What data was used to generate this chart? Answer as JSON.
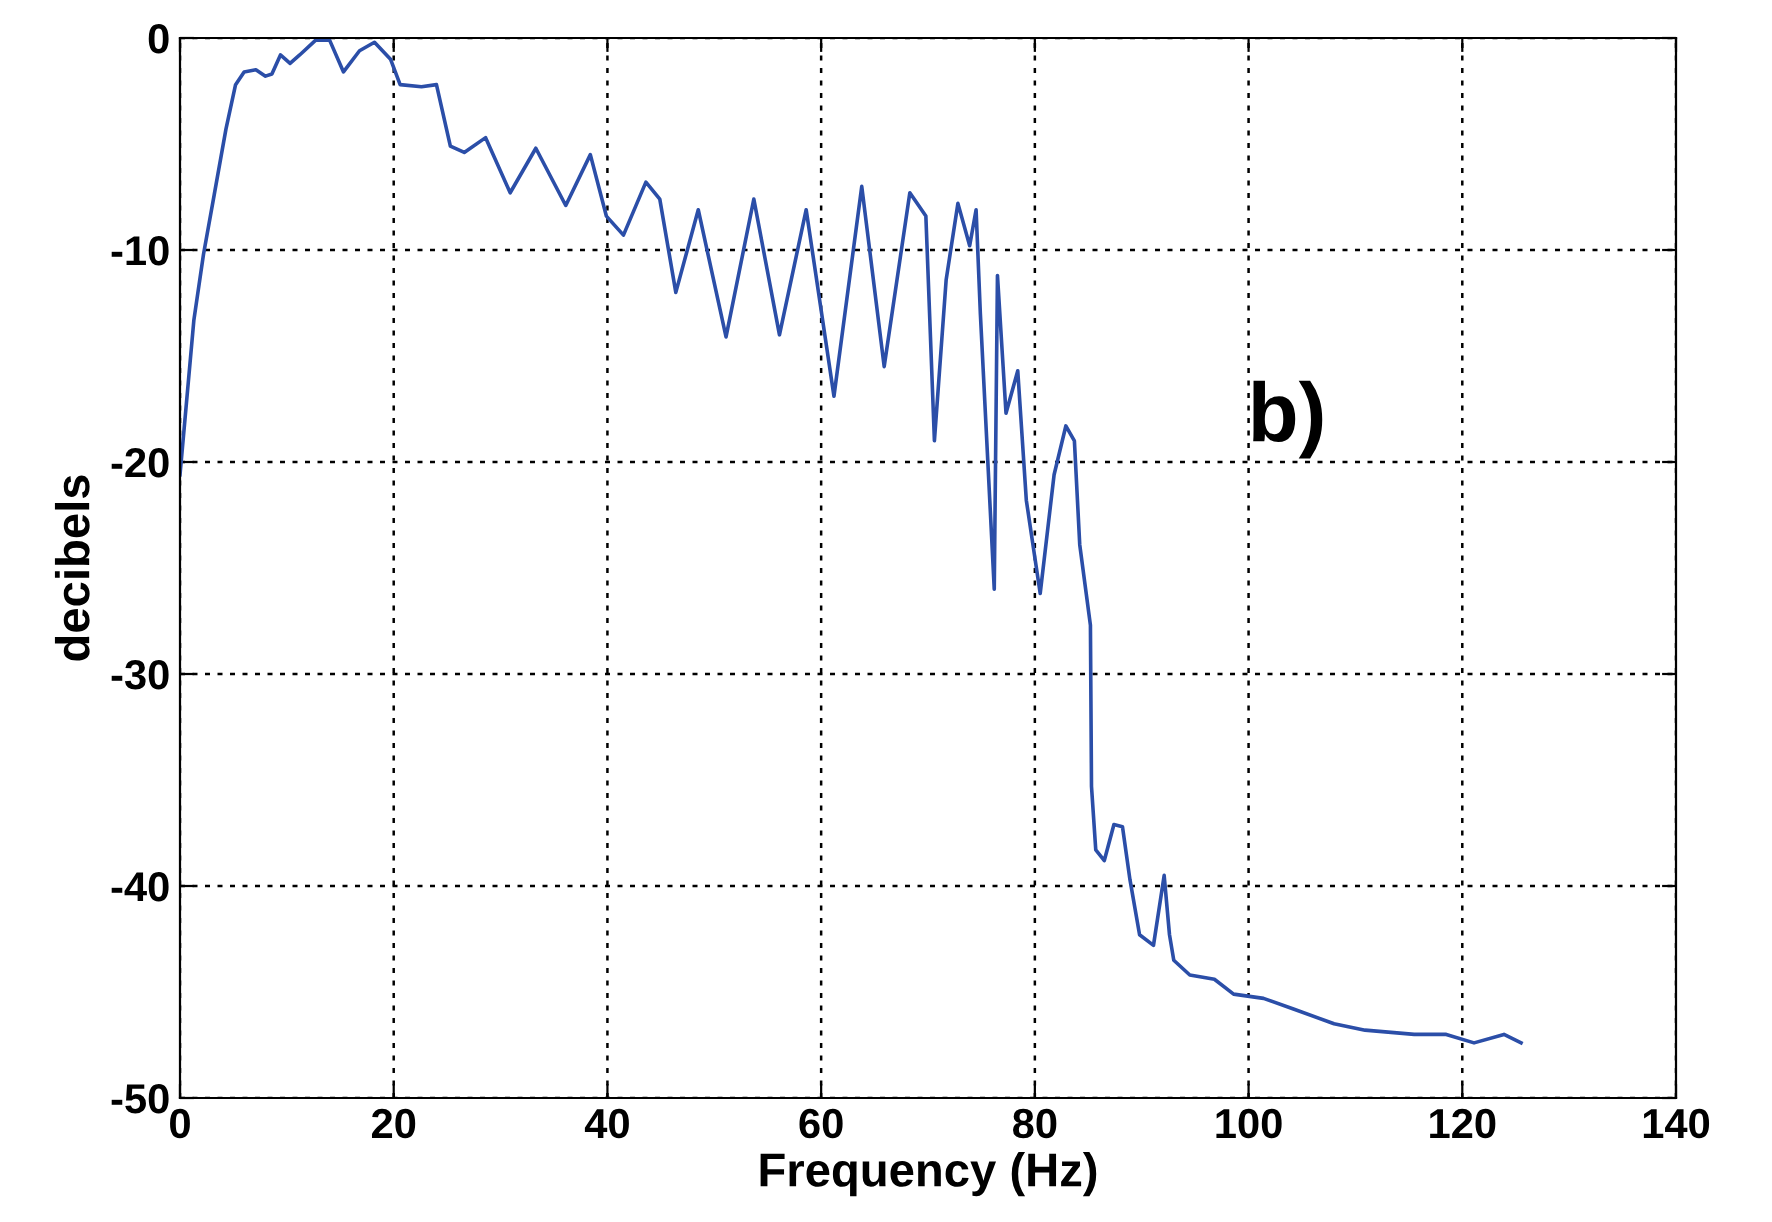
{
  "chart_data": {
    "type": "line",
    "xlabel": "Frequency (Hz)",
    "ylabel": "decibels",
    "annotations": [
      "b)"
    ],
    "xlim": [
      0,
      140
    ],
    "ylim": [
      -50,
      0
    ],
    "xticks": [
      0,
      20,
      40,
      60,
      80,
      100,
      120,
      140
    ],
    "yticks": [
      -50,
      -40,
      -30,
      -20,
      -10,
      0
    ],
    "grid": true,
    "series": [
      {
        "color": "#2b4ea8",
        "x": [
          0,
          1.3,
          2.2,
          3.2,
          4.3,
          5.2,
          6.0,
          7.1,
          8.0,
          8.6,
          9.4,
          10.3,
          11.2,
          12.7,
          14.0,
          15.3,
          16.8,
          18.2,
          19.7,
          20.6,
          22.6,
          24.0,
          25.3,
          26.6,
          28.6,
          30.9,
          33.3,
          36.1,
          38.4,
          39.9,
          41.5,
          43.6,
          44.9,
          46.4,
          48.5,
          51.1,
          53.7,
          56.1,
          58.6,
          61.2,
          63.8,
          65.9,
          68.3,
          69.8,
          70.6,
          71.7,
          72.8,
          73.9,
          74.5,
          74.9,
          76.2,
          76.5,
          77.3,
          78.4,
          79.2,
          80.5,
          81.8,
          82.9,
          83.7,
          84.2,
          85.2,
          85.3,
          85.7,
          86.5,
          87.4,
          88.2,
          88.9,
          89.8,
          91.1,
          92.1,
          92.6,
          93.0,
          94.5,
          96.8,
          98.6,
          101.4,
          104.2,
          108.0,
          110.9,
          115.5,
          118.5,
          121.1,
          123.9,
          125.5
        ],
        "values": [
          -20.6,
          -13.3,
          -10.2,
          -7.4,
          -4.3,
          -2.2,
          -1.6,
          -1.5,
          -1.8,
          -1.7,
          -0.8,
          -1.2,
          -0.8,
          -0.1,
          -0.1,
          -1.6,
          -0.6,
          -0.2,
          -1.0,
          -2.2,
          -2.3,
          -2.2,
          -5.1,
          -5.4,
          -4.7,
          -7.3,
          -5.2,
          -7.9,
          -5.5,
          -8.4,
          -9.3,
          -6.8,
          -7.6,
          -12.0,
          -8.1,
          -14.1,
          -7.6,
          -14.0,
          -8.1,
          -16.9,
          -7.0,
          -15.5,
          -7.3,
          -8.4,
          -19.0,
          -11.4,
          -7.8,
          -9.8,
          -8.1,
          -13.0,
          -26.0,
          -11.2,
          -17.7,
          -15.7,
          -21.8,
          -26.2,
          -20.6,
          -18.3,
          -19.0,
          -23.9,
          -27.7,
          -35.3,
          -38.3,
          -38.8,
          -37.1,
          -37.2,
          -39.7,
          -42.3,
          -42.8,
          -39.5,
          -42.3,
          -43.5,
          -44.2,
          -44.4,
          -45.1,
          -45.3,
          -45.8,
          -46.5,
          -46.8,
          -47.0,
          -47.0,
          -47.4,
          -47.0,
          -47.4
        ]
      }
    ]
  }
}
